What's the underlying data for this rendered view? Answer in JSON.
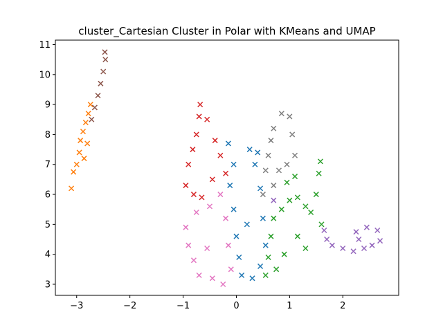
{
  "chart_data": {
    "type": "scatter",
    "title": "cluster_Cartesian Cluster in Polar with KMeans and UMAP",
    "xlabel": "",
    "ylabel": "",
    "xlim": [
      -3.4,
      3.05
    ],
    "ylim": [
      2.63,
      11.15
    ],
    "xticks": [
      -3,
      -2,
      -1,
      0,
      1,
      2
    ],
    "yticks": [
      3,
      4,
      5,
      6,
      7,
      8,
      9,
      10,
      11
    ],
    "marker": "x",
    "grid": false,
    "legend": "none",
    "clusters": [
      {
        "color": "#ff7f0e",
        "points": [
          [
            -3.1,
            6.2
          ],
          [
            -3.06,
            6.75
          ],
          [
            -3.0,
            7.0
          ],
          [
            -2.95,
            7.4
          ],
          [
            -2.93,
            7.8
          ],
          [
            -2.88,
            8.1
          ],
          [
            -2.83,
            8.4
          ],
          [
            -2.78,
            8.7
          ],
          [
            -2.74,
            9.0
          ],
          [
            -2.8,
            7.7
          ],
          [
            -2.86,
            7.2
          ]
        ]
      },
      {
        "color": "#8c564b",
        "points": [
          [
            -2.72,
            8.5
          ],
          [
            -2.66,
            8.9
          ],
          [
            -2.6,
            9.3
          ],
          [
            -2.55,
            9.7
          ],
          [
            -2.5,
            10.1
          ],
          [
            -2.46,
            10.5
          ],
          [
            -2.47,
            10.75
          ]
        ]
      },
      {
        "color": "#d62728",
        "points": [
          [
            -0.95,
            6.3
          ],
          [
            -0.9,
            7.0
          ],
          [
            -0.82,
            7.5
          ],
          [
            -0.75,
            8.0
          ],
          [
            -0.7,
            8.6
          ],
          [
            -0.68,
            9.0
          ],
          [
            -0.55,
            8.5
          ],
          [
            -0.4,
            7.8
          ],
          [
            -0.3,
            7.3
          ],
          [
            -0.45,
            6.5
          ],
          [
            -0.65,
            5.9
          ],
          [
            -0.8,
            6.0
          ],
          [
            -0.2,
            6.7
          ]
        ]
      },
      {
        "color": "#e377c2",
        "points": [
          [
            -0.95,
            4.9
          ],
          [
            -0.9,
            4.3
          ],
          [
            -0.8,
            3.8
          ],
          [
            -0.7,
            3.3
          ],
          [
            -0.45,
            3.2
          ],
          [
            -0.25,
            3.0
          ],
          [
            -0.1,
            3.5
          ],
          [
            -0.15,
            4.3
          ],
          [
            -0.2,
            5.2
          ],
          [
            -0.3,
            6.0
          ],
          [
            -0.5,
            5.6
          ],
          [
            -0.75,
            5.4
          ],
          [
            -0.55,
            4.2
          ]
        ]
      },
      {
        "color": "#1f77b4",
        "points": [
          [
            -0.15,
            7.7
          ],
          [
            -0.05,
            7.0
          ],
          [
            -0.12,
            6.3
          ],
          [
            -0.05,
            5.5
          ],
          [
            0.0,
            4.6
          ],
          [
            0.05,
            3.9
          ],
          [
            0.1,
            3.3
          ],
          [
            0.3,
            3.2
          ],
          [
            0.45,
            3.6
          ],
          [
            0.55,
            4.3
          ],
          [
            0.5,
            5.2
          ],
          [
            0.45,
            6.2
          ],
          [
            0.35,
            7.0
          ],
          [
            0.25,
            7.5
          ],
          [
            0.4,
            7.4
          ],
          [
            0.2,
            5.0
          ]
        ]
      },
      {
        "color": "#7f7f7f",
        "points": [
          [
            0.5,
            6.0
          ],
          [
            0.55,
            6.8
          ],
          [
            0.6,
            7.3
          ],
          [
            0.65,
            7.8
          ],
          [
            0.7,
            8.2
          ],
          [
            0.85,
            8.7
          ],
          [
            1.0,
            8.6
          ],
          [
            1.05,
            8.0
          ],
          [
            1.1,
            7.3
          ],
          [
            0.95,
            7.0
          ],
          [
            0.8,
            6.8
          ],
          [
            0.7,
            6.3
          ]
        ]
      },
      {
        "color": "#2ca02c",
        "points": [
          [
            0.55,
            3.3
          ],
          [
            0.6,
            3.9
          ],
          [
            0.65,
            4.6
          ],
          [
            0.7,
            5.2
          ],
          [
            0.85,
            5.5
          ],
          [
            1.0,
            5.8
          ],
          [
            1.1,
            6.6
          ],
          [
            0.95,
            6.4
          ],
          [
            1.15,
            5.9
          ],
          [
            1.3,
            5.6
          ],
          [
            1.4,
            5.4
          ],
          [
            1.5,
            6.0
          ],
          [
            1.55,
            6.7
          ],
          [
            1.58,
            7.1
          ],
          [
            1.6,
            5.0
          ],
          [
            1.3,
            4.2
          ],
          [
            1.15,
            4.6
          ],
          [
            0.9,
            4.0
          ],
          [
            0.75,
            3.5
          ]
        ]
      },
      {
        "color": "#9467bd",
        "points": [
          [
            0.7,
            5.8
          ],
          [
            1.65,
            4.8
          ],
          [
            1.7,
            4.5
          ],
          [
            1.8,
            4.3
          ],
          [
            2.0,
            4.2
          ],
          [
            2.2,
            4.1
          ],
          [
            2.4,
            4.2
          ],
          [
            2.55,
            4.3
          ],
          [
            2.7,
            4.45
          ],
          [
            2.65,
            4.8
          ],
          [
            2.45,
            4.9
          ],
          [
            2.25,
            4.75
          ],
          [
            2.3,
            4.5
          ]
        ]
      }
    ]
  }
}
